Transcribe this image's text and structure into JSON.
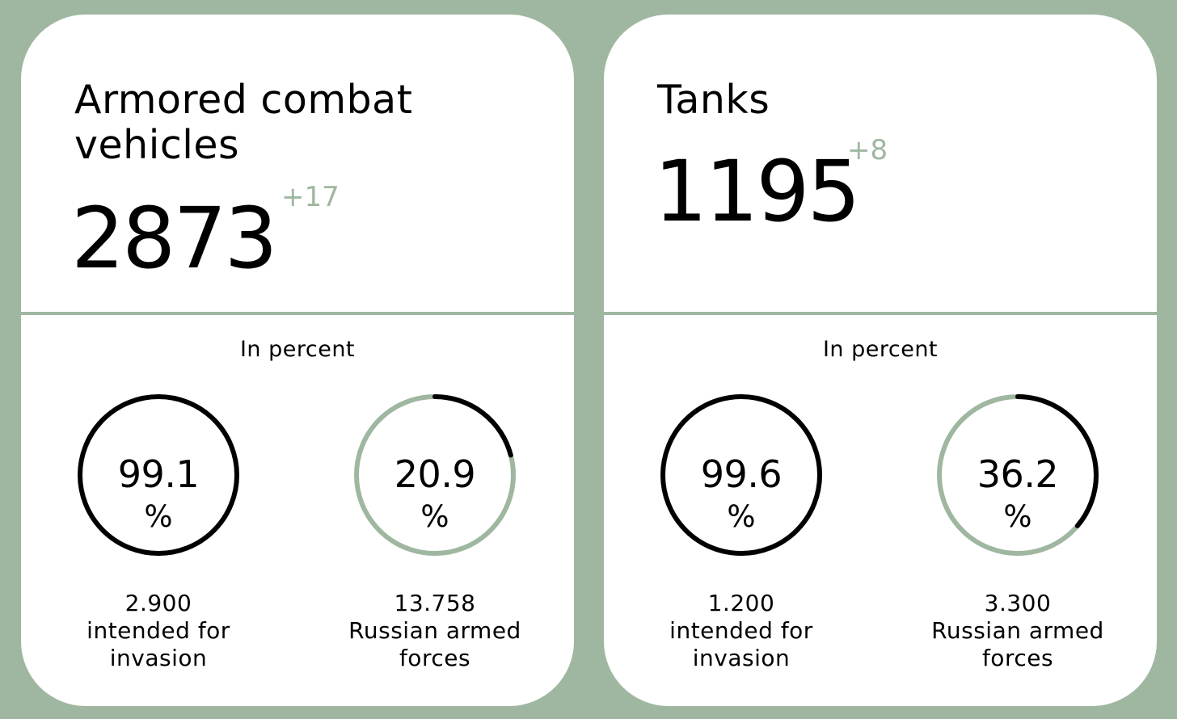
{
  "colors": {
    "background": "#9fb7a0",
    "card": "#ffffff",
    "accent": "#9fb7a0",
    "ring_full": "#000000"
  },
  "cards": [
    {
      "title": "Armored combat vehicles",
      "count": "2873",
      "delta": "+17",
      "in_percent_label": "In percent",
      "stats": [
        {
          "percent": "99.1",
          "unit": "%",
          "number": "2.900",
          "label": "intended for invasion",
          "ring_style": "full-black"
        },
        {
          "percent": "20.9",
          "unit": "%",
          "number": "13.758",
          "label": "Russian armed forces",
          "ring_style": "partial-arc"
        }
      ]
    },
    {
      "title": "Tanks",
      "count": "1195",
      "delta": "+8",
      "in_percent_label": "In percent",
      "stats": [
        {
          "percent": "99.6",
          "unit": "%",
          "number": "1.200",
          "label": "intended for invasion",
          "ring_style": "full-black"
        },
        {
          "percent": "36.2",
          "unit": "%",
          "number": "3.300",
          "label": "Russian armed forces",
          "ring_style": "partial-arc"
        }
      ]
    }
  ],
  "chart_data": [
    {
      "type": "pie",
      "title": "Armored combat vehicles",
      "categories": [
        "intended for invasion",
        "Russian armed forces"
      ],
      "values": [
        99.1,
        20.9
      ],
      "totals": [
        2900,
        13758
      ],
      "count": 2873,
      "delta": 17
    },
    {
      "type": "pie",
      "title": "Tanks",
      "categories": [
        "intended for invasion",
        "Russian armed forces"
      ],
      "values": [
        99.6,
        36.2
      ],
      "totals": [
        1200,
        3300
      ],
      "count": 1195,
      "delta": 8
    }
  ]
}
